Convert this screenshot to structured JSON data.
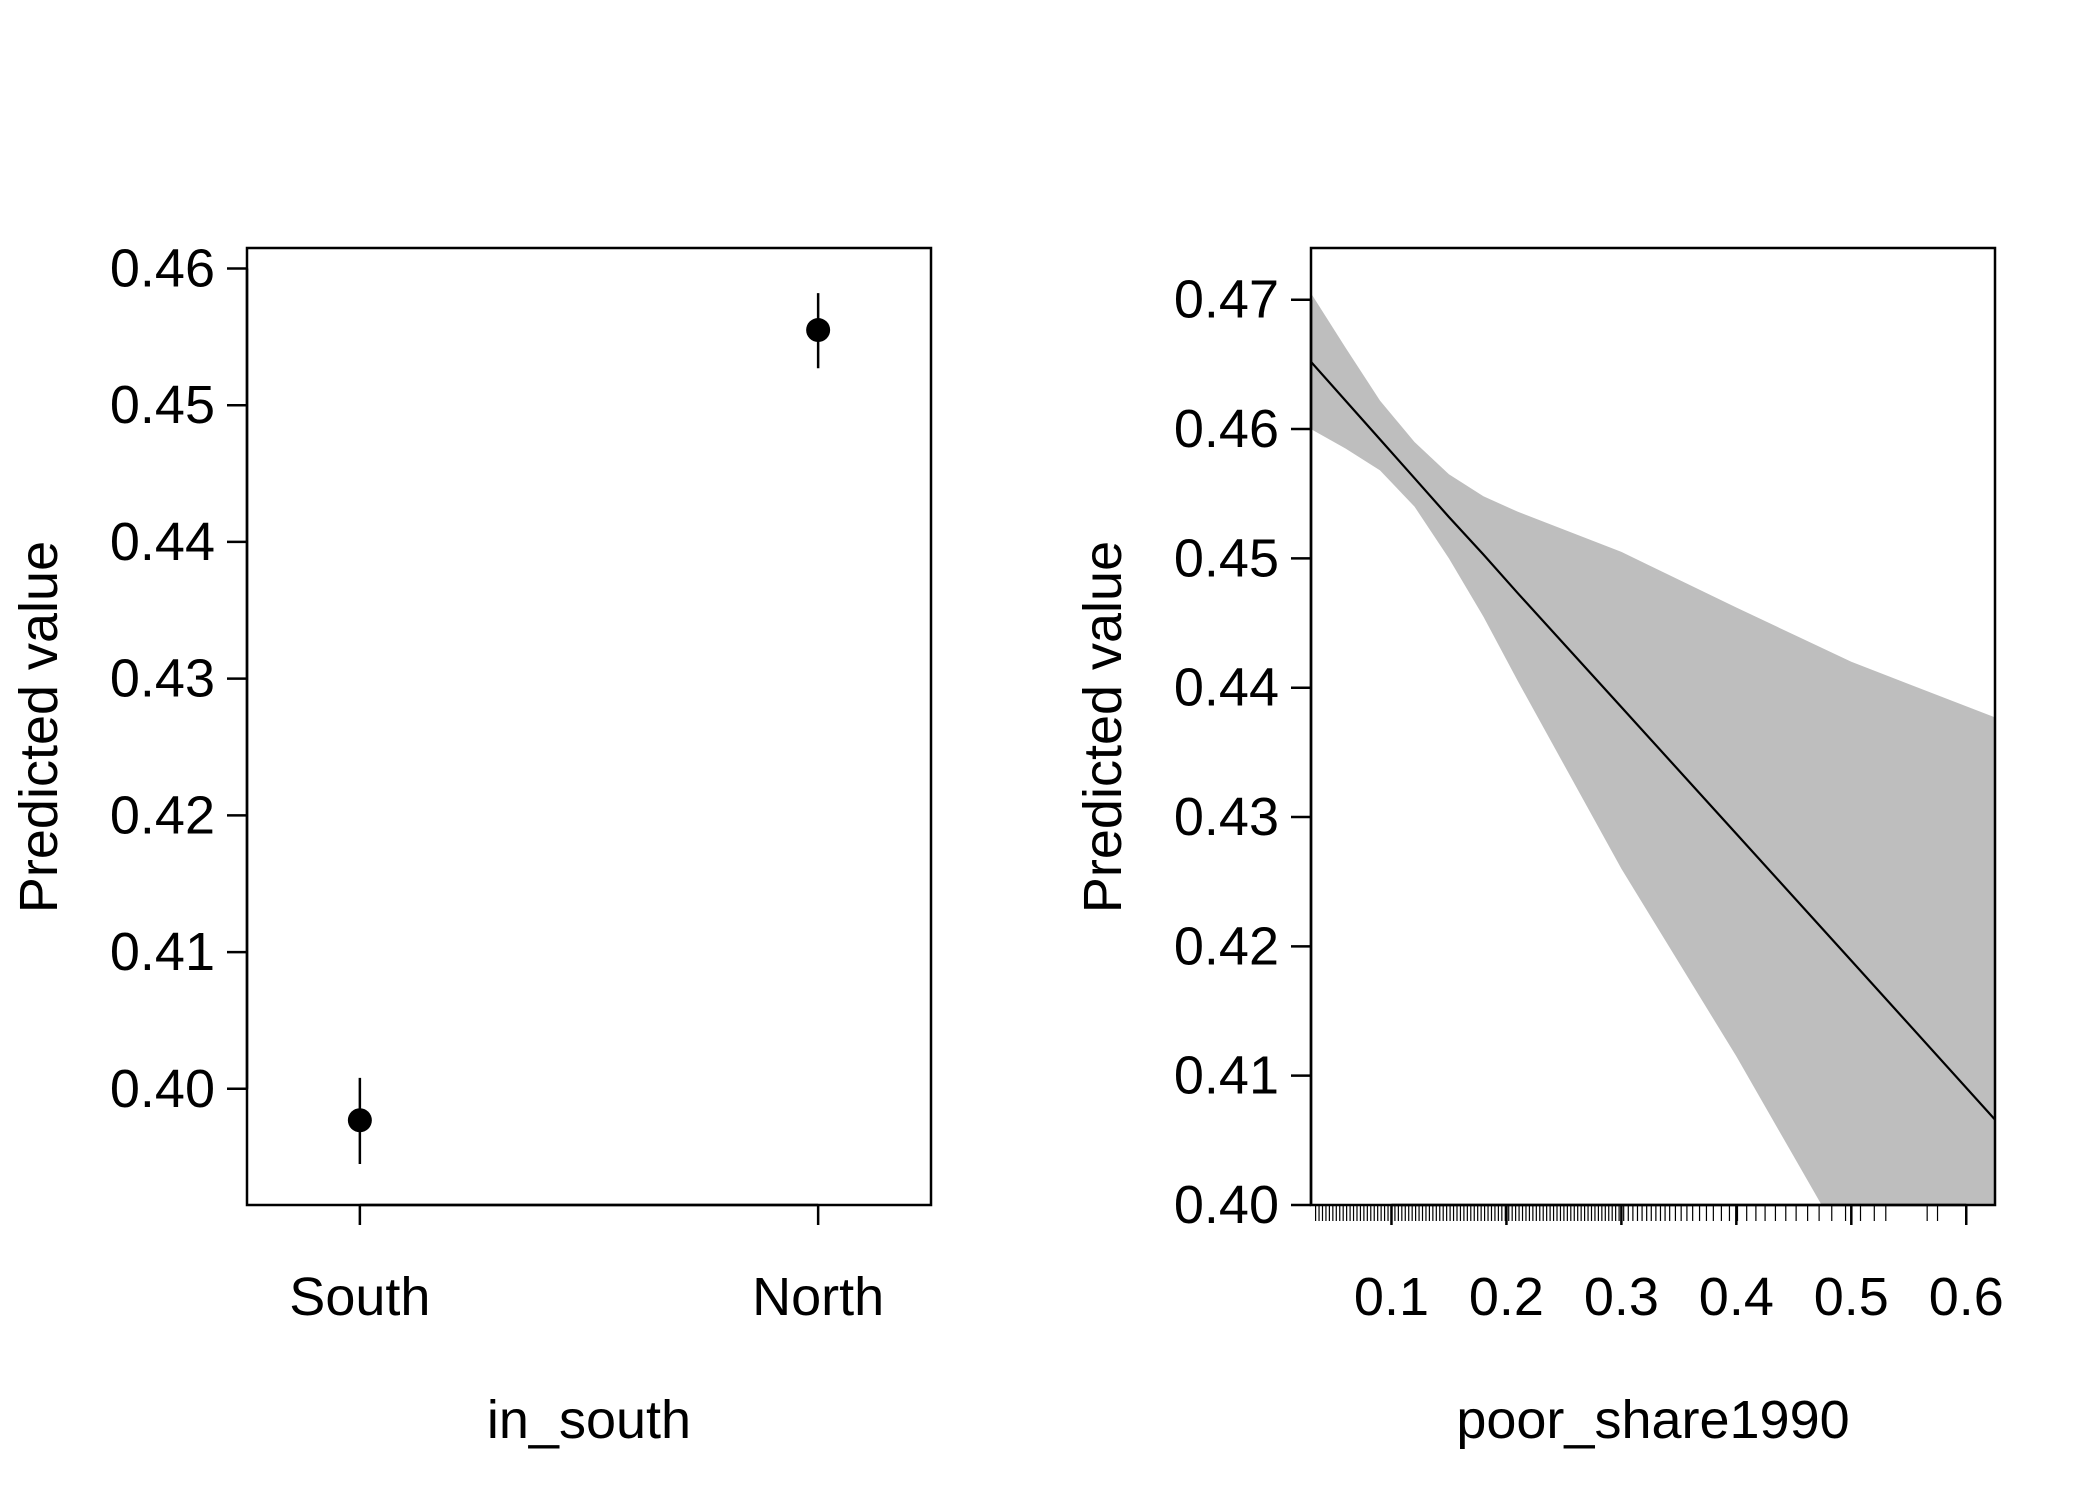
{
  "chart_data": [
    {
      "type": "scatter",
      "title": "",
      "xlabel": "in_south",
      "ylabel": "Predicted value",
      "categories": [
        "South",
        "North"
      ],
      "values": [
        0.3977,
        0.4555
      ],
      "ci_lower": [
        0.3945,
        0.4527
      ],
      "ci_upper": [
        0.4008,
        0.4582
      ],
      "ylim": [
        0.3915,
        0.4615
      ],
      "yticks": [
        0.4,
        0.41,
        0.42,
        0.43,
        0.44,
        0.45,
        0.46
      ],
      "ytick_labels": [
        "0.40",
        "0.41",
        "0.42",
        "0.43",
        "0.44",
        "0.45",
        "0.46"
      ],
      "grid": false
    },
    {
      "type": "line",
      "title": "",
      "xlabel": "poor_share1990",
      "ylabel": "Predicted value",
      "x": [
        0.03,
        0.06,
        0.09,
        0.12,
        0.15,
        0.18,
        0.21,
        0.3,
        0.4,
        0.5,
        0.625
      ],
      "y": [
        0.4652,
        0.4622,
        0.4592,
        0.4562,
        0.4532,
        0.4503,
        0.4473,
        0.4385,
        0.4287,
        0.4189,
        0.4066
      ],
      "ci_lower": [
        0.46,
        0.4585,
        0.4568,
        0.454,
        0.45,
        0.4455,
        0.4405,
        0.426,
        0.4115,
        0.396,
        0.379
      ],
      "ci_upper": [
        0.4705,
        0.4663,
        0.4622,
        0.459,
        0.4565,
        0.4548,
        0.4536,
        0.4505,
        0.4462,
        0.442,
        0.4377
      ],
      "xlim": [
        0.03,
        0.625
      ],
      "ylim": [
        0.4,
        0.474
      ],
      "xticks": [
        0.1,
        0.2,
        0.3,
        0.4,
        0.5,
        0.6
      ],
      "xtick_labels": [
        "0.1",
        "0.2",
        "0.3",
        "0.4",
        "0.5",
        "0.6"
      ],
      "yticks": [
        0.4,
        0.41,
        0.42,
        0.43,
        0.44,
        0.45,
        0.46,
        0.47
      ],
      "ytick_labels": [
        "0.40",
        "0.41",
        "0.42",
        "0.43",
        "0.44",
        "0.45",
        "0.46",
        "0.47"
      ],
      "rug": [
        0.034,
        0.037,
        0.04,
        0.043,
        0.046,
        0.049,
        0.052,
        0.055,
        0.058,
        0.061,
        0.064,
        0.067,
        0.07,
        0.073,
        0.076,
        0.079,
        0.082,
        0.085,
        0.088,
        0.091,
        0.094,
        0.097,
        0.1,
        0.103,
        0.106,
        0.109,
        0.112,
        0.115,
        0.118,
        0.121,
        0.124,
        0.127,
        0.13,
        0.133,
        0.136,
        0.139,
        0.142,
        0.145,
        0.148,
        0.151,
        0.154,
        0.157,
        0.16,
        0.163,
        0.166,
        0.169,
        0.172,
        0.175,
        0.178,
        0.181,
        0.184,
        0.187,
        0.19,
        0.193,
        0.196,
        0.199,
        0.202,
        0.205,
        0.208,
        0.211,
        0.214,
        0.217,
        0.22,
        0.223,
        0.226,
        0.229,
        0.232,
        0.235,
        0.238,
        0.241,
        0.244,
        0.247,
        0.25,
        0.253,
        0.256,
        0.259,
        0.262,
        0.265,
        0.268,
        0.271,
        0.274,
        0.277,
        0.28,
        0.283,
        0.286,
        0.289,
        0.292,
        0.295,
        0.298,
        0.302,
        0.306,
        0.31,
        0.314,
        0.318,
        0.322,
        0.326,
        0.33,
        0.334,
        0.338,
        0.342,
        0.347,
        0.352,
        0.357,
        0.362,
        0.368,
        0.374,
        0.38,
        0.387,
        0.394,
        0.401,
        0.409,
        0.417,
        0.425,
        0.434,
        0.443,
        0.452,
        0.462,
        0.472,
        0.483,
        0.495,
        0.508,
        0.52,
        0.53,
        0.566,
        0.575,
        0.6
      ],
      "band_color": "#bebebe",
      "grid": false
    }
  ]
}
